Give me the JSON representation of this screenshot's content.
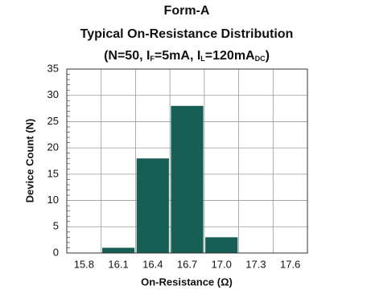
{
  "chart_data": {
    "type": "bar",
    "title_lines": [
      "Form-A",
      "Typical On-Resistance Distribution"
    ],
    "subtitle_parts": [
      "(N=50, I",
      "F",
      "=5mA, I",
      "L",
      "=120mA",
      "DC",
      ")"
    ],
    "x_label": "On-Resistance (Ω)",
    "y_label": "Device Count (N)",
    "categories": [
      "15.8",
      "16.1",
      "16.4",
      "16.7",
      "17.0",
      "17.3",
      "17.6"
    ],
    "values": [
      0,
      1,
      18,
      28,
      3,
      0,
      0
    ],
    "color": "#175f55",
    "ylim": [
      0,
      35
    ],
    "yticks": [
      0,
      5,
      10,
      15,
      20,
      25,
      30,
      35
    ],
    "grid": true
  }
}
